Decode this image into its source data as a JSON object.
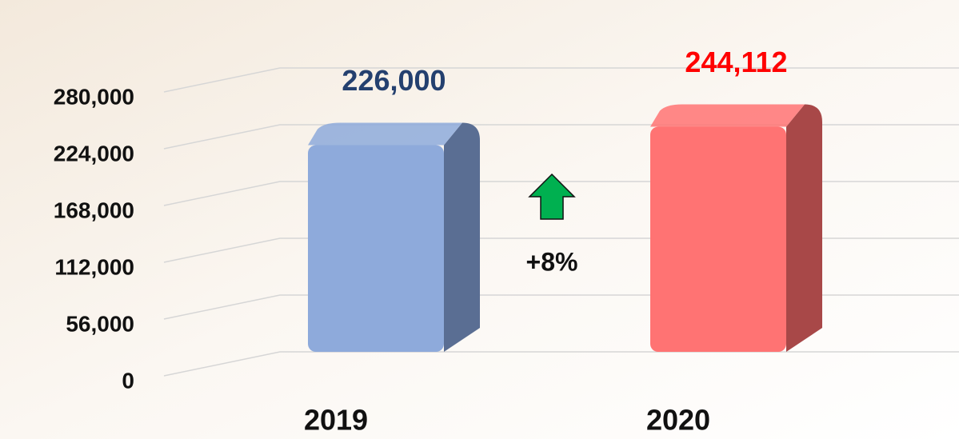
{
  "chart_data": {
    "type": "bar",
    "categories": [
      "2019",
      "2020"
    ],
    "values": [
      226000,
      244112
    ],
    "value_labels": [
      "226,000",
      "244,112"
    ],
    "colors": [
      "#8eaadb",
      "#ff7373"
    ],
    "side_colors": [
      "#5a6e93",
      "#a84848"
    ],
    "label_colors": [
      "#24406f",
      "#ff0000"
    ],
    "ylim": [
      0,
      336000
    ],
    "yticks": [
      0,
      {
        "value": 56000,
        "label": "56,000"
      },
      {
        "value": 112000,
        "label": "112,000"
      },
      {
        "value": 168000,
        "label": "168,000"
      },
      {
        "value": 224000,
        "label": "224,000"
      },
      {
        "value": 280000,
        "label": "280,000"
      }
    ],
    "grid": true,
    "annotation": "+8%"
  }
}
